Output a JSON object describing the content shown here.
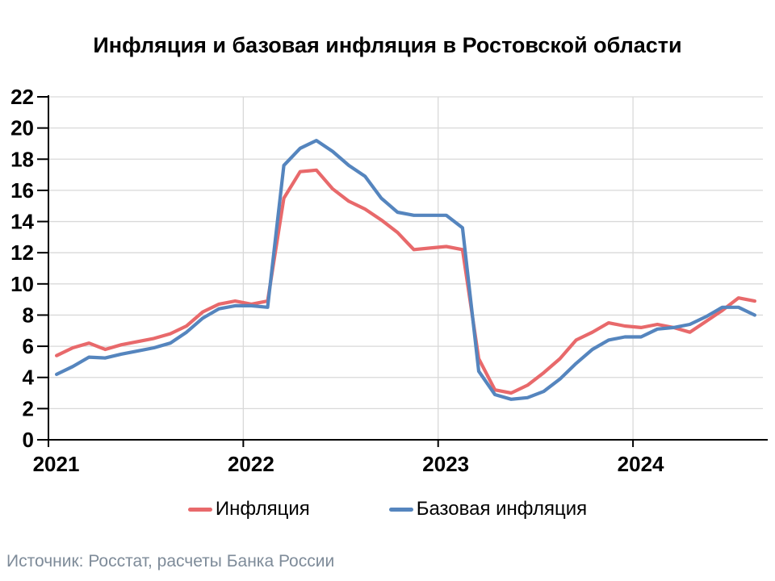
{
  "title": "Инфляция и базовая инфляция в Ростовской области",
  "source": "Источник: Росстат, расчеты Банка России",
  "legend": [
    {
      "label": "Инфляция",
      "color": "#E8696B"
    },
    {
      "label": "Базовая инфляция",
      "color": "#5585BE"
    }
  ],
  "chart_data": {
    "type": "line",
    "title": "Инфляция и базовая инфляция в Ростовской области",
    "x_start": "2021-01",
    "x_end": "2024-08",
    "x_tick_labels": [
      "2021",
      "2022",
      "2023",
      "2024"
    ],
    "y_ticks": [
      0,
      2,
      4,
      6,
      8,
      10,
      12,
      14,
      16,
      18,
      20,
      22
    ],
    "ylim": [
      0,
      22
    ],
    "grid": true,
    "legend_position": "bottom",
    "axis_color": "#000000",
    "gridline_color": "#D9D9D9",
    "series": [
      {
        "name": "Инфляция",
        "key": "inflation",
        "color": "#E8696B",
        "values": [
          5.4,
          5.9,
          6.2,
          5.8,
          6.1,
          6.3,
          6.5,
          6.8,
          7.3,
          8.2,
          8.7,
          8.9,
          8.7,
          8.9,
          15.5,
          17.2,
          17.3,
          16.1,
          15.3,
          14.8,
          14.1,
          13.3,
          12.2,
          12.3,
          12.4,
          12.2,
          5.2,
          3.2,
          3.0,
          3.5,
          4.3,
          5.2,
          6.4,
          6.9,
          7.5,
          7.3,
          7.2,
          7.4,
          7.2,
          6.9,
          7.6,
          8.3,
          9.1,
          8.9
        ]
      },
      {
        "name": "Базовая инфляция",
        "key": "core-inflation",
        "color": "#5585BE",
        "values": [
          4.2,
          4.7,
          5.3,
          5.25,
          5.5,
          5.7,
          5.9,
          6.2,
          6.9,
          7.8,
          8.4,
          8.6,
          8.6,
          8.5,
          17.6,
          18.7,
          19.2,
          18.5,
          17.6,
          16.9,
          15.5,
          14.6,
          14.4,
          14.4,
          14.4,
          13.6,
          4.4,
          2.9,
          2.6,
          2.7,
          3.1,
          3.9,
          4.9,
          5.8,
          6.4,
          6.6,
          6.6,
          7.1,
          7.2,
          7.4,
          7.9,
          8.5,
          8.5,
          8.0
        ]
      }
    ]
  }
}
